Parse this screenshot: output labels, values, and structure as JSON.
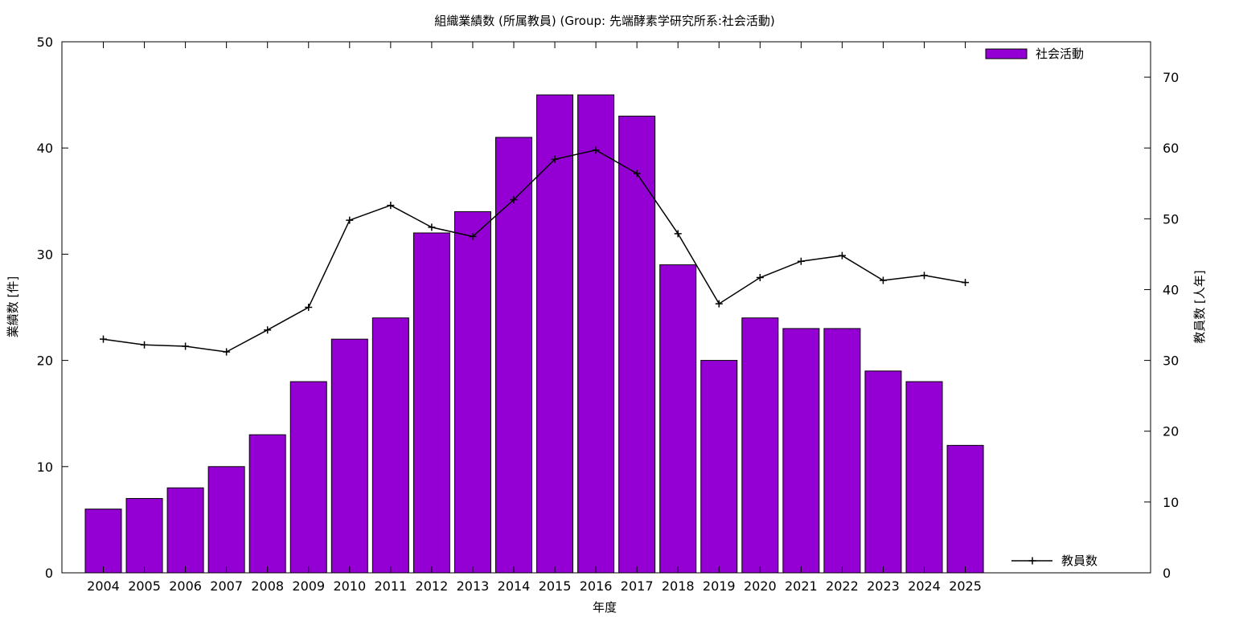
{
  "chart_data": {
    "type": "bar",
    "title": "組織業績数 (所属教員) (Group: 先端酵素学研究所系:社会活動)",
    "xlabel": "年度",
    "ylabel": "業績数 [件]",
    "y2label": "教員数 [人年]",
    "categories": [
      "2004",
      "2005",
      "2006",
      "2007",
      "2008",
      "2009",
      "2010",
      "2011",
      "2012",
      "2013",
      "2014",
      "2015",
      "2016",
      "2017",
      "2018",
      "2019",
      "2020",
      "2021",
      "2022",
      "2023",
      "2024",
      "2025"
    ],
    "ylim": [
      0,
      50
    ],
    "y2lim": [
      0,
      75
    ],
    "yticks": [
      0,
      10,
      20,
      30,
      40,
      50
    ],
    "y2ticks": [
      0,
      10,
      20,
      30,
      40,
      50,
      60,
      70
    ],
    "grid": false,
    "series": [
      {
        "name": "社会活動",
        "type": "bar",
        "axis": "left",
        "color": "#9400d3",
        "legend": "top-right",
        "values": [
          6,
          7,
          8,
          10,
          13,
          18,
          22,
          24,
          32,
          34,
          41,
          45,
          45,
          43,
          29,
          20,
          24,
          23,
          23,
          19,
          18,
          12
        ]
      },
      {
        "name": "教員数",
        "type": "line",
        "axis": "right",
        "color": "#000000",
        "marker": "plus",
        "legend": "bottom-right",
        "values": [
          33.0,
          32.2,
          32.0,
          31.2,
          34.3,
          37.5,
          49.8,
          51.9,
          48.8,
          47.5,
          52.7,
          58.4,
          59.7,
          56.4,
          47.9,
          38.0,
          41.7,
          44.0,
          44.8,
          41.3,
          42.0,
          41.0
        ]
      }
    ]
  }
}
